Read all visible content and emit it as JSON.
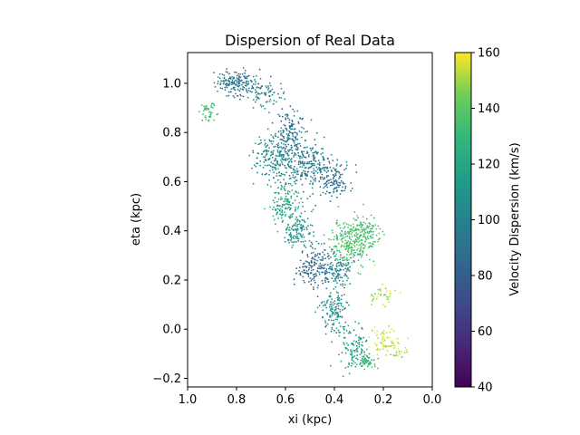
{
  "chart_data": {
    "type": "scatter",
    "title": "Dispersion of Real Data",
    "xlabel": "xi (kpc)",
    "ylabel": "eta (kpc)",
    "xlim": [
      1.0,
      0.0
    ],
    "ylim": [
      -0.235,
      1.125
    ],
    "x_inverted": true,
    "x_ticks": [
      1.0,
      0.8,
      0.6,
      0.4,
      0.2,
      0.0
    ],
    "x_tick_labels": [
      "1.0",
      "0.8",
      "0.6",
      "0.4",
      "0.2",
      "0.0"
    ],
    "y_ticks": [
      -0.2,
      0.0,
      0.2,
      0.4,
      0.6,
      0.8,
      1.0
    ],
    "y_tick_labels": [
      "−0.2",
      "0.0",
      "0.2",
      "0.4",
      "0.6",
      "0.8",
      "1.0"
    ],
    "grid": false,
    "legend": "none",
    "colorbar": {
      "label": "Velocity Dispersion (km/s)",
      "colormap": "viridis",
      "range": [
        40,
        160
      ],
      "ticks": [
        40,
        60,
        80,
        100,
        120,
        140,
        160
      ],
      "tick_labels": [
        "40",
        "60",
        "80",
        "100",
        "120",
        "140",
        "160"
      ]
    },
    "clusters": [
      {
        "x": 0.8,
        "y": 1.0,
        "sx": 0.045,
        "sy": 0.025,
        "value": 92,
        "n": 180
      },
      {
        "x": 0.68,
        "y": 0.96,
        "sx": 0.035,
        "sy": 0.03,
        "value": 100,
        "n": 70
      },
      {
        "x": 0.91,
        "y": 0.88,
        "sx": 0.02,
        "sy": 0.02,
        "value": 132,
        "n": 40
      },
      {
        "x": 0.58,
        "y": 0.8,
        "sx": 0.03,
        "sy": 0.05,
        "value": 90,
        "n": 140
      },
      {
        "x": 0.63,
        "y": 0.7,
        "sx": 0.05,
        "sy": 0.05,
        "value": 104,
        "n": 220
      },
      {
        "x": 0.5,
        "y": 0.66,
        "sx": 0.05,
        "sy": 0.05,
        "value": 96,
        "n": 220
      },
      {
        "x": 0.4,
        "y": 0.6,
        "sx": 0.03,
        "sy": 0.03,
        "value": 88,
        "n": 100
      },
      {
        "x": 0.6,
        "y": 0.5,
        "sx": 0.03,
        "sy": 0.04,
        "value": 118,
        "n": 130
      },
      {
        "x": 0.55,
        "y": 0.4,
        "sx": 0.03,
        "sy": 0.04,
        "value": 110,
        "n": 120
      },
      {
        "x": 0.33,
        "y": 0.35,
        "sx": 0.045,
        "sy": 0.045,
        "value": 135,
        "n": 260
      },
      {
        "x": 0.27,
        "y": 0.4,
        "sx": 0.03,
        "sy": 0.03,
        "value": 132,
        "n": 80
      },
      {
        "x": 0.48,
        "y": 0.25,
        "sx": 0.035,
        "sy": 0.04,
        "value": 86,
        "n": 170
      },
      {
        "x": 0.38,
        "y": 0.24,
        "sx": 0.025,
        "sy": 0.03,
        "value": 100,
        "n": 90
      },
      {
        "x": 0.4,
        "y": 0.07,
        "sx": 0.03,
        "sy": 0.045,
        "value": 108,
        "n": 130
      },
      {
        "x": 0.32,
        "y": -0.08,
        "sx": 0.03,
        "sy": 0.04,
        "value": 115,
        "n": 110
      },
      {
        "x": 0.27,
        "y": -0.13,
        "sx": 0.02,
        "sy": 0.015,
        "value": 128,
        "n": 50
      },
      {
        "x": 0.2,
        "y": 0.14,
        "sx": 0.03,
        "sy": 0.02,
        "value": 150,
        "n": 35
      },
      {
        "x": 0.19,
        "y": -0.05,
        "sx": 0.03,
        "sy": 0.035,
        "value": 155,
        "n": 70
      },
      {
        "x": 0.14,
        "y": -0.1,
        "sx": 0.015,
        "sy": 0.01,
        "value": 150,
        "n": 15
      }
    ]
  }
}
